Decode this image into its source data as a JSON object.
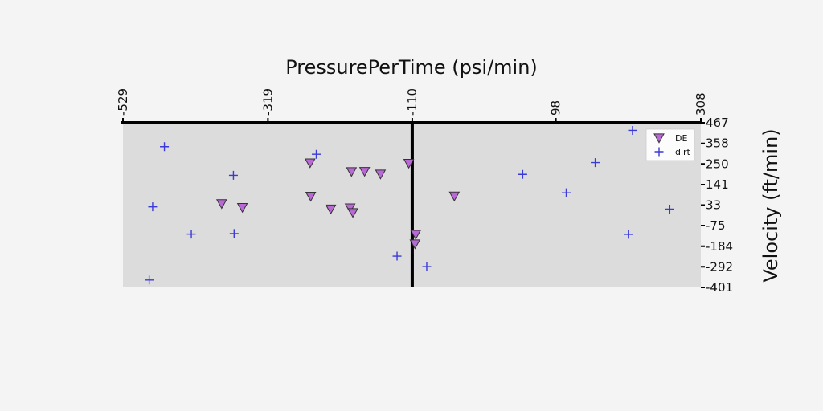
{
  "chart_data": {
    "type": "scatter",
    "title": "PressurePerTime (psi/min)",
    "xlabel": "",
    "ylabel": "Velocity (ft/min)",
    "xlim": [
      -529,
      308
    ],
    "ylim": [
      -401,
      467
    ],
    "x_ticks": [
      "-529",
      "-319",
      "-110",
      "98",
      "308"
    ],
    "y_ticks": [
      "467",
      "358",
      "250",
      "141",
      "33",
      "-75",
      "-184",
      "-292",
      "-401"
    ],
    "x_axis_position": "top",
    "y_axis_position": "right",
    "background": "#dcdcdc",
    "grid": false,
    "legend_position": "top-right",
    "series": [
      {
        "name": "DE",
        "marker": "triangle-down",
        "color": "#b968d6",
        "points": [
          [
            -258,
            255
          ],
          [
            -257,
            79
          ],
          [
            -198,
            209
          ],
          [
            -179,
            210
          ],
          [
            -156,
            196
          ],
          [
            -115,
            253
          ],
          [
            -386,
            40
          ],
          [
            -356,
            20
          ],
          [
            -228,
            12
          ],
          [
            -200,
            18
          ],
          [
            -196,
            -7
          ],
          [
            -105,
            -122
          ],
          [
            -106,
            -172
          ],
          [
            -49,
            80
          ]
        ]
      },
      {
        "name": "dirt",
        "marker": "plus",
        "color": "#3a3ad6",
        "points": [
          [
            -469,
            341
          ],
          [
            -249,
            301
          ],
          [
            -369,
            190
          ],
          [
            -486,
            24
          ],
          [
            -430,
            -120
          ],
          [
            -368,
            -117
          ],
          [
            -491,
            -362
          ],
          [
            -132,
            -236
          ],
          [
            -89,
            -291
          ],
          [
            50,
            195
          ],
          [
            113,
            98
          ],
          [
            155,
            257
          ],
          [
            209,
            427
          ],
          [
            263,
            12
          ],
          [
            203,
            -121
          ]
        ]
      }
    ]
  }
}
